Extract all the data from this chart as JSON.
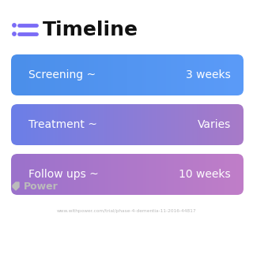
{
  "title": "Timeline",
  "icon_color": "#7B6CF6",
  "title_fontsize": 18,
  "title_color": "#111111",
  "background_color": "#ffffff",
  "rows": [
    {
      "label": "Screening ~",
      "value": "3 weeks",
      "color_left": "#4B8FEA",
      "color_right": "#5B9BF8"
    },
    {
      "label": "Treatment ~",
      "value": "Varies",
      "color_left": "#6B7FE8",
      "color_right": "#A87AC8"
    },
    {
      "label": "Follow ups ~",
      "value": "10 weeks",
      "color_left": "#9B72CC",
      "color_right": "#C07EC8"
    }
  ],
  "watermark_text": "Power",
  "watermark_color": "#bbbbbb",
  "url_text": "www.withpower.com/trial/phase-4-dementia-11-2016-44817",
  "url_color": "#bbbbbb",
  "text_color": "#ffffff",
  "label_fontsize": 10,
  "value_fontsize": 10
}
